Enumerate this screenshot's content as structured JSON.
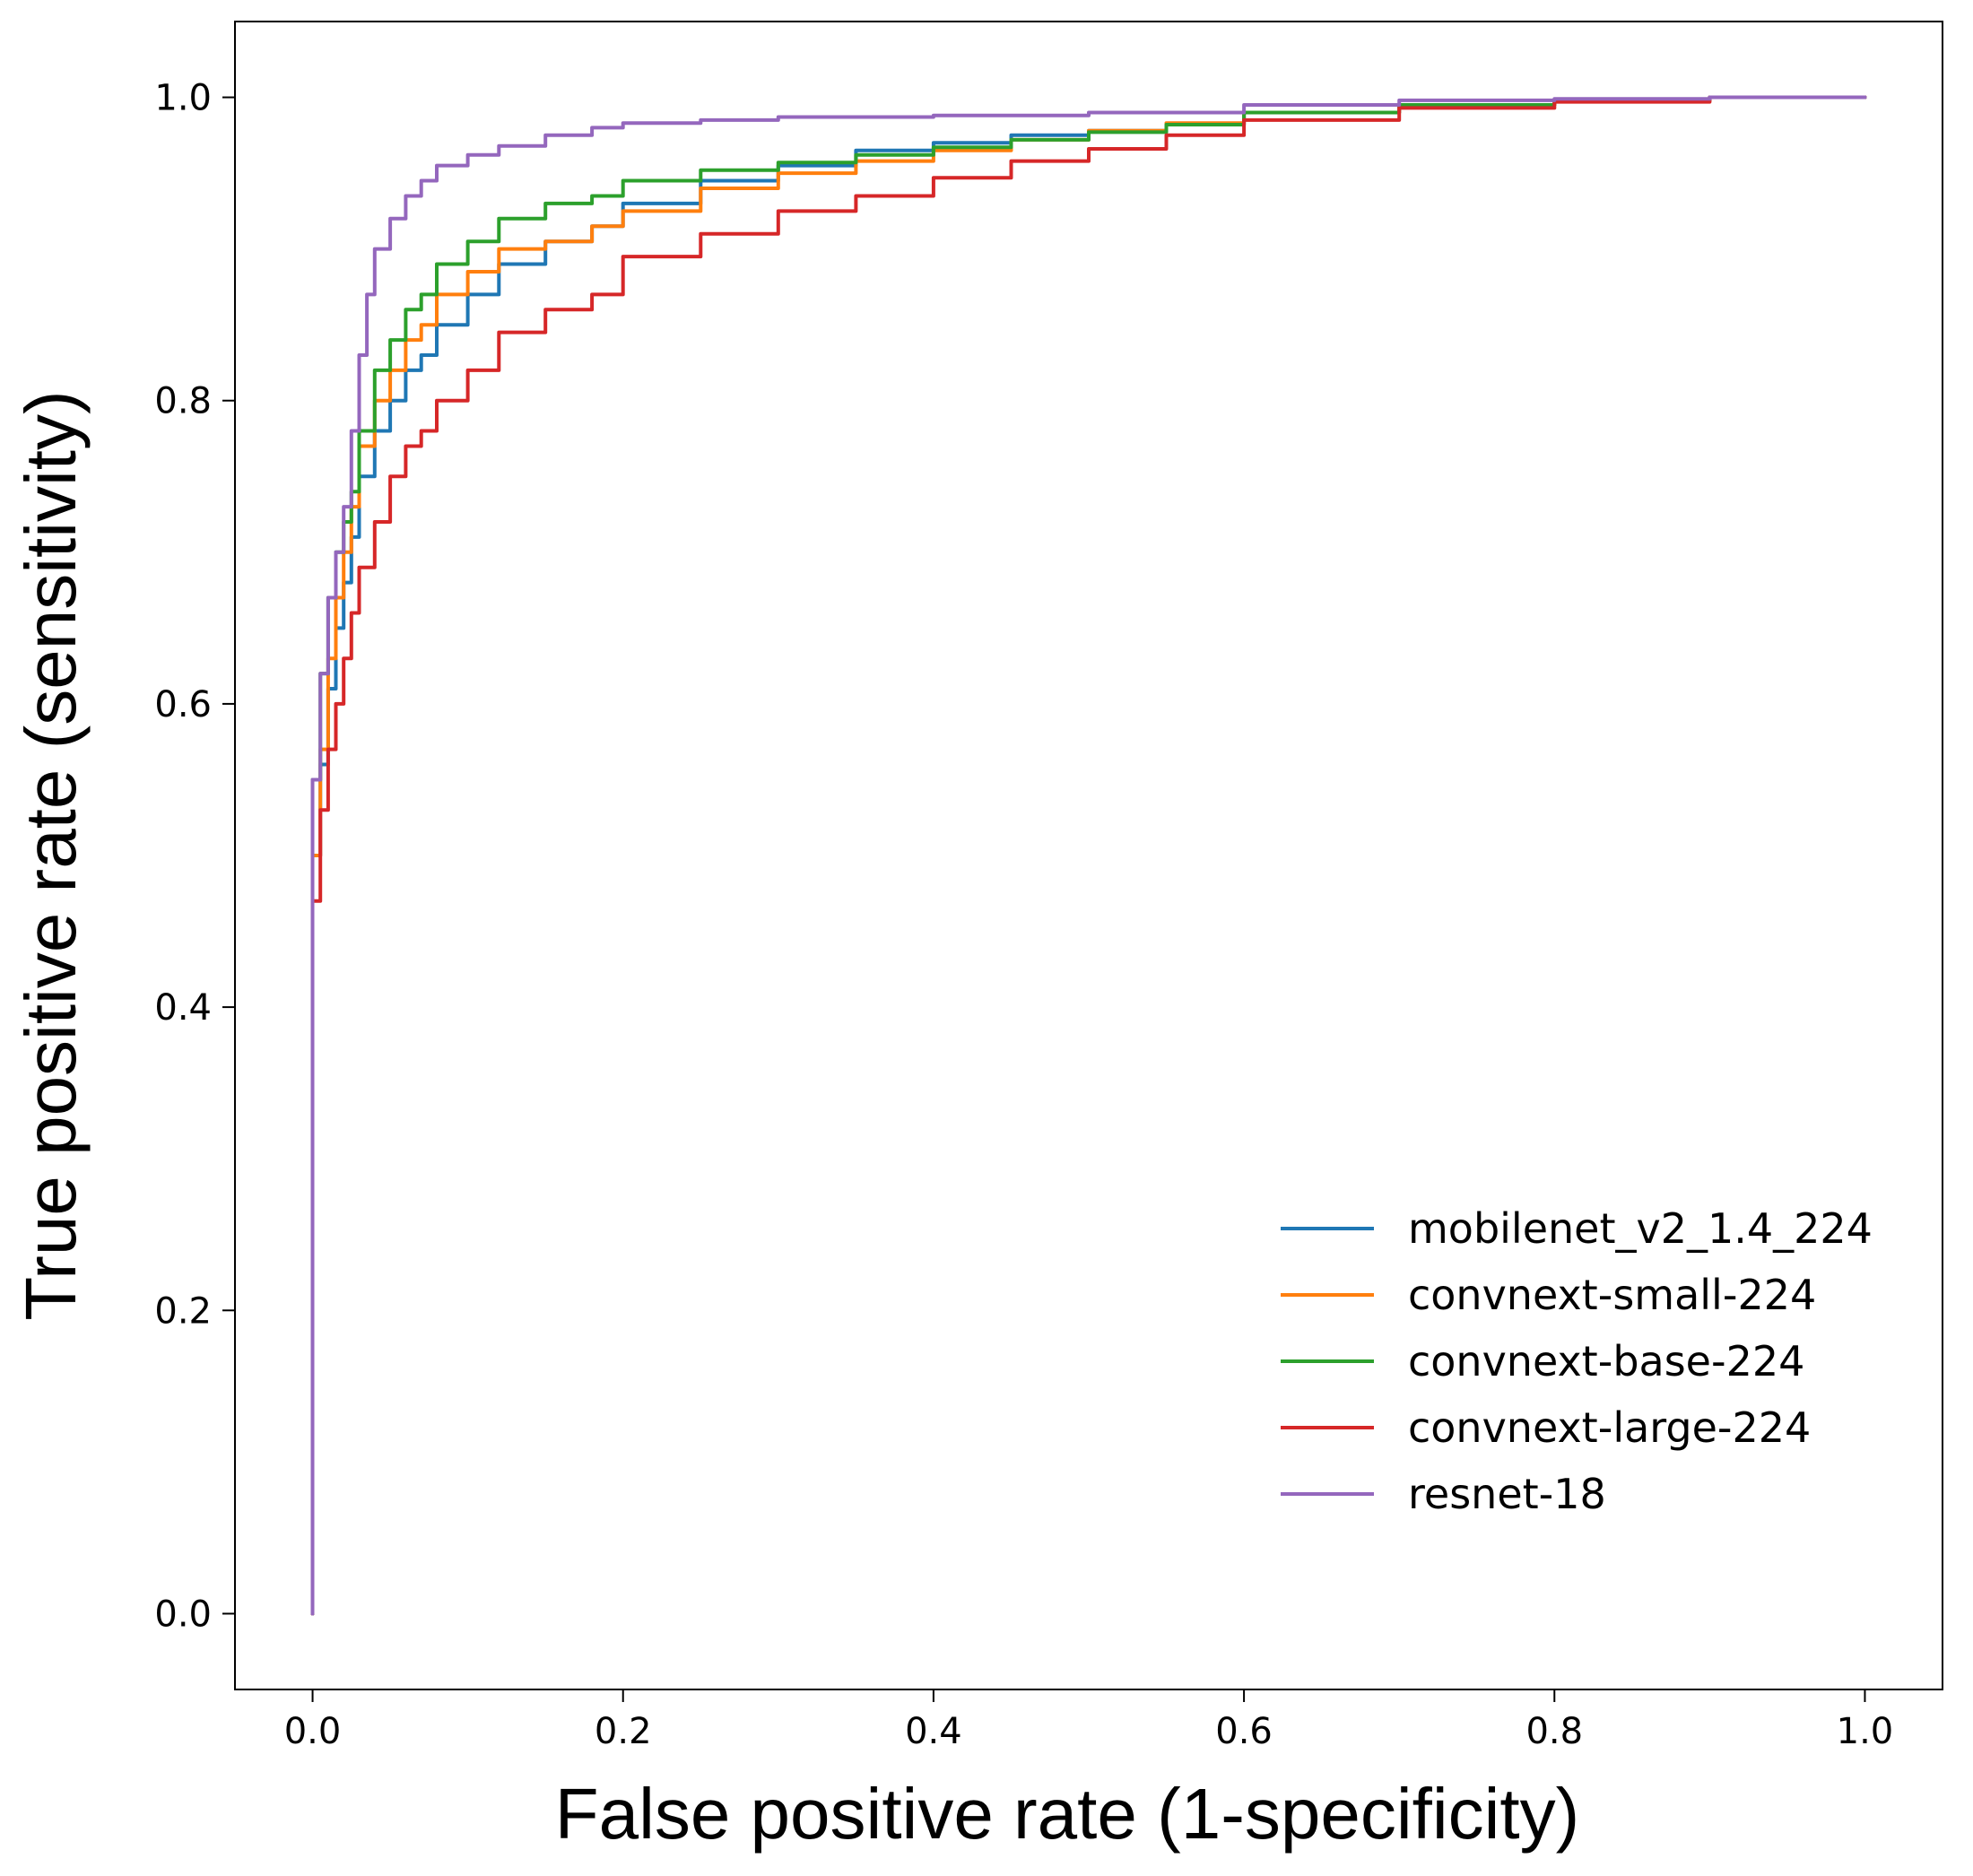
{
  "chart_data": {
    "type": "line",
    "title": "",
    "xlabel": "False positive rate (1-specificity)",
    "ylabel": "True positive rate (sensitivity)",
    "xlim": [
      -0.05,
      1.05
    ],
    "ylim": [
      -0.05,
      1.05
    ],
    "xticks": [
      0.0,
      0.2,
      0.4,
      0.6,
      0.8,
      1.0
    ],
    "xtick_labels": [
      "0.0",
      "0.2",
      "0.4",
      "0.6",
      "0.8",
      "1.0"
    ],
    "yticks": [
      0.0,
      0.2,
      0.4,
      0.6,
      0.8,
      1.0
    ],
    "ytick_labels": [
      "0.0",
      "0.2",
      "0.4",
      "0.6",
      "0.8",
      "1.0"
    ],
    "grid": false,
    "legend_position": "lower-right",
    "series": [
      {
        "name": "mobilenet_v2_1.4_224",
        "color": "#1f77b4",
        "x": [
          0.0,
          0.0,
          0.005,
          0.01,
          0.015,
          0.02,
          0.025,
          0.03,
          0.04,
          0.05,
          0.06,
          0.07,
          0.08,
          0.1,
          0.12,
          0.15,
          0.18,
          0.2,
          0.25,
          0.3,
          0.35,
          0.4,
          0.45,
          0.5,
          0.55,
          0.6,
          0.7,
          0.8,
          0.9,
          1.0
        ],
        "y": [
          0.0,
          0.44,
          0.5,
          0.56,
          0.61,
          0.65,
          0.68,
          0.71,
          0.75,
          0.78,
          0.8,
          0.82,
          0.83,
          0.85,
          0.87,
          0.89,
          0.905,
          0.915,
          0.93,
          0.945,
          0.955,
          0.965,
          0.97,
          0.975,
          0.978,
          0.982,
          0.99,
          0.995,
          0.998,
          1.0
        ]
      },
      {
        "name": "convnext-small-224",
        "color": "#ff7f0e",
        "x": [
          0.0,
          0.0,
          0.005,
          0.01,
          0.015,
          0.02,
          0.025,
          0.03,
          0.04,
          0.05,
          0.06,
          0.07,
          0.08,
          0.1,
          0.12,
          0.15,
          0.18,
          0.2,
          0.25,
          0.3,
          0.35,
          0.4,
          0.45,
          0.5,
          0.55,
          0.6,
          0.7,
          0.8,
          0.9,
          1.0
        ],
        "y": [
          0.0,
          0.42,
          0.5,
          0.57,
          0.63,
          0.67,
          0.7,
          0.73,
          0.77,
          0.8,
          0.82,
          0.84,
          0.85,
          0.87,
          0.885,
          0.9,
          0.905,
          0.915,
          0.925,
          0.94,
          0.95,
          0.958,
          0.965,
          0.972,
          0.978,
          0.983,
          0.99,
          0.995,
          0.998,
          1.0
        ]
      },
      {
        "name": "convnext-base-224",
        "color": "#2ca02c",
        "x": [
          0.0,
          0.0,
          0.005,
          0.01,
          0.015,
          0.02,
          0.025,
          0.03,
          0.04,
          0.05,
          0.06,
          0.07,
          0.08,
          0.1,
          0.12,
          0.15,
          0.18,
          0.2,
          0.25,
          0.3,
          0.35,
          0.4,
          0.45,
          0.5,
          0.55,
          0.6,
          0.7,
          0.8,
          0.9,
          1.0
        ],
        "y": [
          0.0,
          0.45,
          0.55,
          0.62,
          0.67,
          0.7,
          0.72,
          0.74,
          0.78,
          0.82,
          0.84,
          0.86,
          0.87,
          0.89,
          0.905,
          0.92,
          0.93,
          0.935,
          0.945,
          0.952,
          0.957,
          0.962,
          0.967,
          0.972,
          0.977,
          0.982,
          0.99,
          0.995,
          0.998,
          1.0
        ]
      },
      {
        "name": "convnext-large-224",
        "color": "#d62728",
        "x": [
          0.0,
          0.0,
          0.005,
          0.01,
          0.015,
          0.02,
          0.025,
          0.03,
          0.04,
          0.05,
          0.06,
          0.07,
          0.08,
          0.1,
          0.12,
          0.15,
          0.18,
          0.2,
          0.25,
          0.3,
          0.35,
          0.4,
          0.45,
          0.5,
          0.55,
          0.6,
          0.7,
          0.8,
          0.9,
          1.0
        ],
        "y": [
          0.0,
          0.41,
          0.47,
          0.53,
          0.57,
          0.6,
          0.63,
          0.66,
          0.69,
          0.72,
          0.75,
          0.77,
          0.78,
          0.8,
          0.82,
          0.845,
          0.86,
          0.87,
          0.895,
          0.91,
          0.925,
          0.935,
          0.947,
          0.958,
          0.966,
          0.975,
          0.985,
          0.993,
          0.997,
          1.0
        ]
      },
      {
        "name": "resnet-18",
        "color": "#9467bd",
        "x": [
          0.0,
          0.0,
          0.005,
          0.01,
          0.015,
          0.02,
          0.025,
          0.03,
          0.035,
          0.04,
          0.05,
          0.06,
          0.07,
          0.08,
          0.1,
          0.12,
          0.15,
          0.18,
          0.2,
          0.25,
          0.3,
          0.4,
          0.5,
          0.6,
          0.7,
          0.8,
          0.9,
          1.0
        ],
        "y": [
          0.0,
          0.45,
          0.55,
          0.62,
          0.67,
          0.7,
          0.73,
          0.78,
          0.83,
          0.87,
          0.9,
          0.92,
          0.935,
          0.945,
          0.955,
          0.962,
          0.968,
          0.975,
          0.98,
          0.983,
          0.985,
          0.987,
          0.988,
          0.99,
          0.995,
          0.998,
          0.999,
          1.0
        ]
      }
    ]
  }
}
